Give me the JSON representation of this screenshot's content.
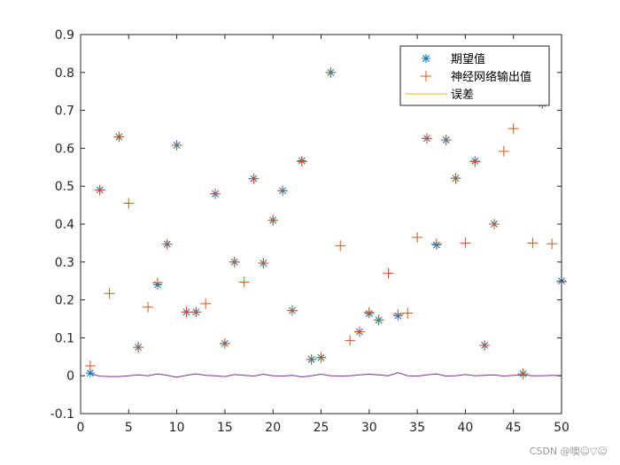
{
  "chart_data": {
    "type": "scatter",
    "x": [
      1,
      2,
      3,
      4,
      5,
      6,
      7,
      8,
      9,
      10,
      11,
      12,
      13,
      14,
      15,
      16,
      17,
      18,
      19,
      20,
      21,
      22,
      23,
      24,
      25,
      26,
      27,
      28,
      29,
      30,
      31,
      32,
      33,
      34,
      35,
      36,
      37,
      38,
      39,
      40,
      41,
      42,
      43,
      44,
      45,
      46,
      47,
      48,
      49,
      50
    ],
    "series": [
      {
        "name": "期望值",
        "marker": "asterisk",
        "color": "#0072BD",
        "values": [
          0.007,
          0.49,
          null,
          0.63,
          null,
          0.075,
          null,
          0.24,
          0.347,
          0.608,
          0.168,
          0.168,
          null,
          0.48,
          0.085,
          0.3,
          null,
          0.52,
          0.297,
          0.41,
          0.488,
          0.172,
          0.567,
          0.043,
          0.048,
          0.8,
          null,
          null,
          0.116,
          0.164,
          0.147,
          null,
          0.158,
          null,
          null,
          0.626,
          0.345,
          0.622,
          0.521,
          null,
          0.566,
          0.08,
          0.4,
          null,
          null,
          0.005,
          null,
          0.718,
          null,
          0.25
        ]
      },
      {
        "name": "神经网络输出值",
        "marker": "plus",
        "color": "#D95319",
        "values": [
          0.026,
          0.49,
          0.217,
          0.63,
          0.455,
          0.075,
          0.181,
          0.245,
          0.347,
          0.608,
          0.168,
          0.168,
          0.19,
          0.48,
          0.085,
          0.3,
          0.247,
          0.52,
          0.297,
          0.41,
          0.488,
          0.172,
          0.565,
          0.043,
          0.048,
          0.8,
          0.343,
          0.093,
          0.116,
          0.167,
          0.147,
          0.27,
          0.162,
          0.165,
          0.365,
          0.626,
          0.348,
          0.622,
          0.521,
          0.35,
          0.565,
          0.08,
          0.4,
          0.592,
          0.652,
          0.005,
          0.35,
          0.718,
          0.348,
          0.248
        ]
      },
      {
        "name": "误差",
        "marker": "line",
        "color": "#EDB120",
        "values": [
          0.005,
          -0.001,
          -0.002,
          -0.002,
          0,
          0.002,
          0,
          0.005,
          0.001,
          -0.004,
          0.001,
          0.005,
          0.001,
          0,
          -0.002,
          0.003,
          0.001,
          -0.001,
          0.004,
          0,
          -0.001,
          0.001,
          -0.003,
          0,
          0.004,
          0,
          -0.001,
          0,
          0.002,
          0.004,
          0.002,
          0,
          0.008,
          0,
          -0.001,
          0.002,
          0.005,
          -0.001,
          0,
          0.003,
          0,
          0.001,
          0.002,
          -0.001,
          0.001,
          0.002,
          0,
          0,
          0.001,
          0
        ]
      }
    ],
    "error_line_color": "#7E2F8E",
    "xlim": [
      0,
      50
    ],
    "ylim": [
      -0.1,
      0.9
    ],
    "xticks": [
      "0",
      "5",
      "10",
      "15",
      "20",
      "25",
      "30",
      "35",
      "40",
      "45",
      "50"
    ],
    "yticks": [
      "-0.1",
      "0",
      "0.1",
      "0.2",
      "0.3",
      "0.4",
      "0.5",
      "0.6",
      "0.7",
      "0.8",
      "0.9"
    ],
    "grid": false,
    "legend_position": "top-right"
  },
  "watermark": "CSDN @噢☺▽☺"
}
